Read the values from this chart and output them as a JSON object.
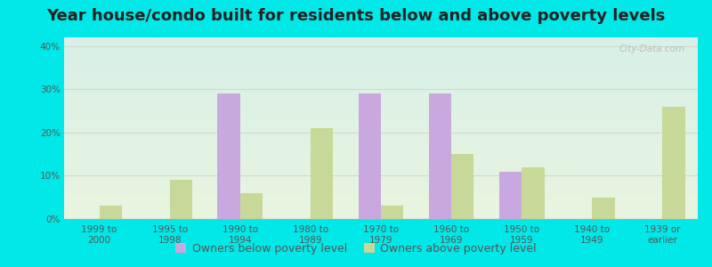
{
  "title": "Year house/condo built for residents below and above poverty levels",
  "categories": [
    "1999 to\n2000",
    "1995 to\n1998",
    "1990 to\n1994",
    "1980 to\n1989",
    "1970 to\n1979",
    "1960 to\n1969",
    "1950 to\n1959",
    "1940 to\n1949",
    "1939 or\nearlier"
  ],
  "below_poverty": [
    0,
    0,
    29,
    0,
    29,
    29,
    11,
    0,
    0
  ],
  "above_poverty": [
    3,
    9,
    6,
    21,
    3,
    15,
    12,
    5,
    26
  ],
  "below_color": "#c9a8e0",
  "above_color": "#c8d898",
  "ylim": [
    0,
    42
  ],
  "yticks": [
    0,
    10,
    20,
    30,
    40
  ],
  "ytick_labels": [
    "0%",
    "10%",
    "20%",
    "30%",
    "40%"
  ],
  "bg_top_color": "#d8f0e8",
  "bg_bottom_color": "#e8f5e0",
  "grid_color": "#d0d8d0",
  "outer_bg": "#00e8e8",
  "bar_width": 0.32,
  "legend_below": "Owners below poverty level",
  "legend_above": "Owners above poverty level",
  "title_fontsize": 13,
  "tick_fontsize": 7.5,
  "legend_fontsize": 9,
  "watermark": "City-Data.com"
}
